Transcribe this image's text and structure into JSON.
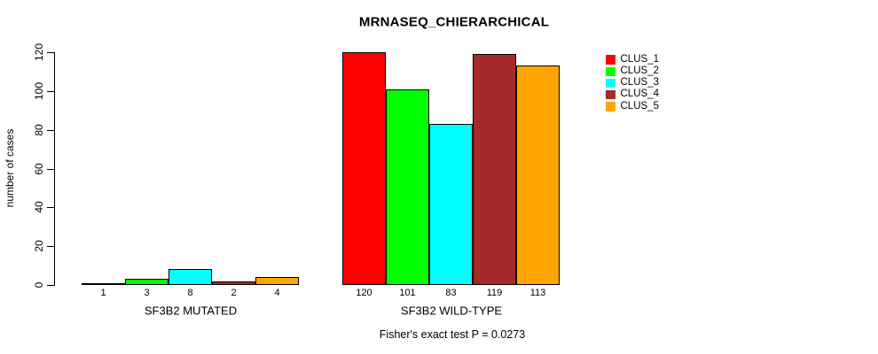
{
  "chart_data": {
    "type": "bar",
    "title": "MRNASEQ_CHIERARCHICAL",
    "ylabel": "number of cases",
    "ylim": [
      0,
      120
    ],
    "yticks": [
      0,
      20,
      40,
      60,
      80,
      100,
      120
    ],
    "grid": false,
    "legend_position": "right-inside",
    "series": [
      {
        "name": "CLUS_1",
        "color": "#FF0000"
      },
      {
        "name": "CLUS_2",
        "color": "#00FF00"
      },
      {
        "name": "CLUS_3",
        "color": "#00FFFF"
      },
      {
        "name": "CLUS_4",
        "color": "#A52A2A"
      },
      {
        "name": "CLUS_5",
        "color": "#FFA500"
      }
    ],
    "groups": [
      {
        "label": "SF3B2 MUTATED",
        "values": [
          1,
          3,
          8,
          2,
          4
        ]
      },
      {
        "label": "SF3B2 WILD-TYPE",
        "values": [
          120,
          101,
          83,
          119,
          113
        ]
      }
    ],
    "bar_value_labels_visible": true,
    "annotation": "Fisher's exact test P = 0.0273",
    "bar_border_color": "#000000",
    "axis_color": "#000000"
  }
}
